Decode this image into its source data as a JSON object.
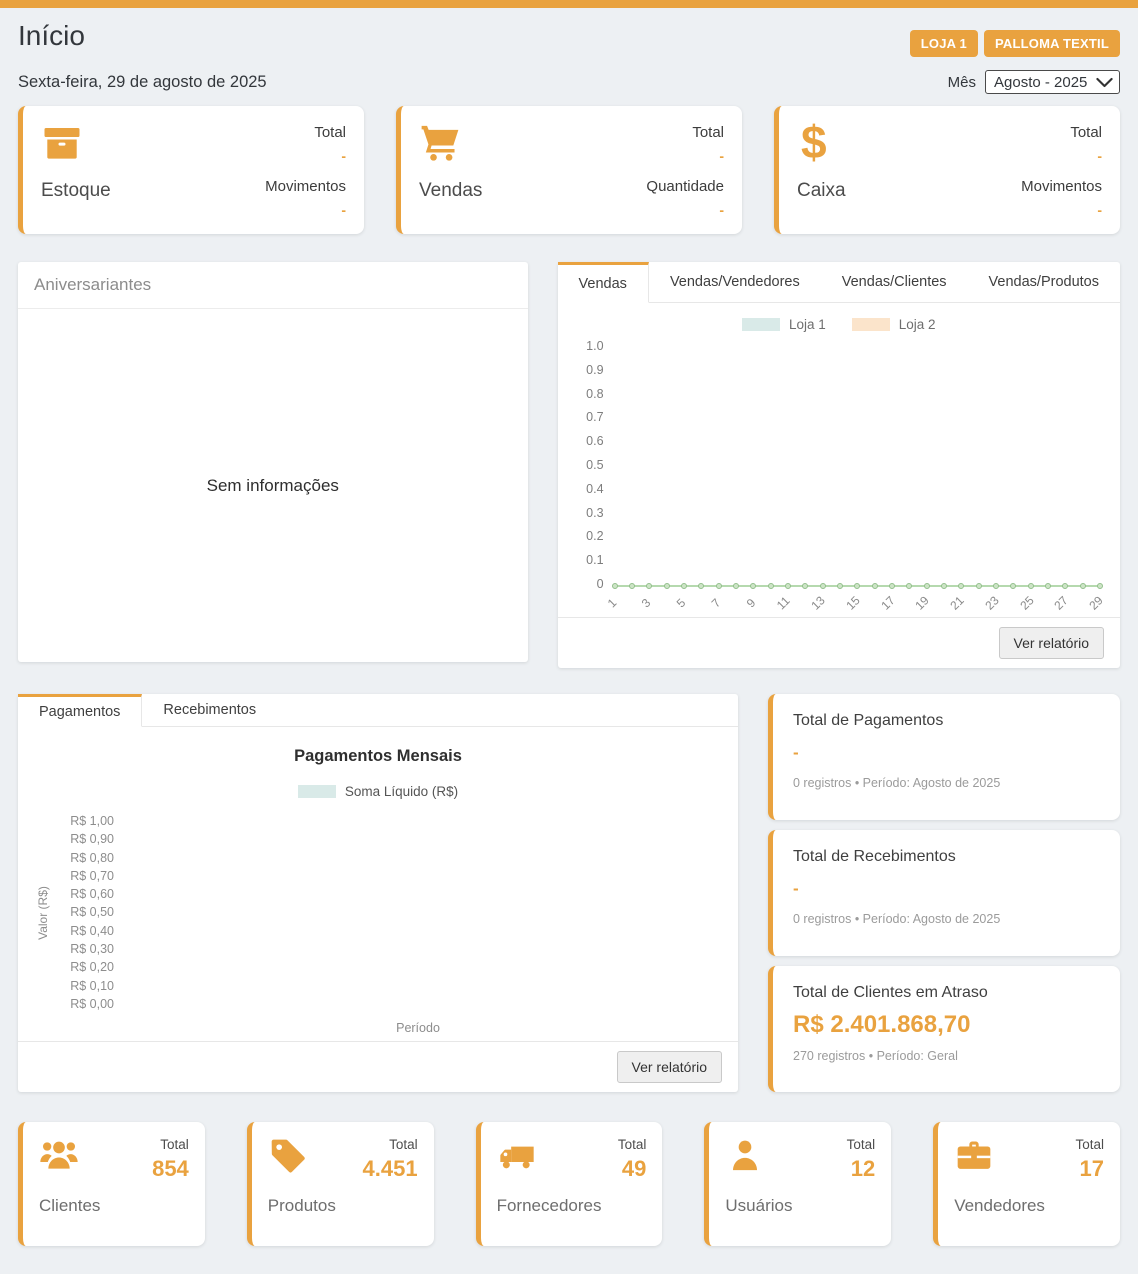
{
  "accent": "#e9a23f",
  "header": {
    "title": "Início",
    "date": "Sexta-feira, 29 de agosto de 2025",
    "store_button": "LOJA 1",
    "company_button": "PALLOMA TEXTIL",
    "month_label": "Mês",
    "month_value": "Agosto - 2025"
  },
  "summary_cards": [
    {
      "label": "Estoque",
      "icon": "box-icon",
      "row1_label": "Total",
      "row1_value": "-",
      "row2_label": "Movimentos",
      "row2_value": "-"
    },
    {
      "label": "Vendas",
      "icon": "cart-icon",
      "row1_label": "Total",
      "row1_value": "-",
      "row2_label": "Quantidade",
      "row2_value": "-"
    },
    {
      "label": "Caixa",
      "icon": "dollar-icon",
      "row1_label": "Total",
      "row1_value": "-",
      "row2_label": "Movimentos",
      "row2_value": "-"
    }
  ],
  "birthdays_panel": {
    "title": "Aniversariantes",
    "empty_message": "Sem informações"
  },
  "sales_panel": {
    "tabs": [
      "Vendas",
      "Vendas/Vendedores",
      "Vendas/Clientes",
      "Vendas/Produtos"
    ],
    "active_tab": "Vendas",
    "report_button": "Ver relatório"
  },
  "payments_panel": {
    "tabs": [
      "Pagamentos",
      "Recebimentos"
    ],
    "active_tab": "Pagamentos",
    "report_button": "Ver relatório"
  },
  "totals_cards": [
    {
      "title": "Total de Pagamentos",
      "value": "-",
      "meta": "0 registros • Período: Agosto de 2025"
    },
    {
      "title": "Total de Recebimentos",
      "value": "-",
      "meta": "0 registros • Período: Agosto de 2025"
    },
    {
      "title": "Total de Clientes em Atraso",
      "value": "R$ 2.401.868,70",
      "meta": "270 registros • Período: Geral"
    }
  ],
  "entity_cards": [
    {
      "label": "Clientes",
      "icon": "people-icon",
      "total_label": "Total",
      "value": "854"
    },
    {
      "label": "Produtos",
      "icon": "tag-icon",
      "total_label": "Total",
      "value": "4.451"
    },
    {
      "label": "Fornecedores",
      "icon": "truck-icon",
      "total_label": "Total",
      "value": "49"
    },
    {
      "label": "Usuários",
      "icon": "person-icon",
      "total_label": "Total",
      "value": "12"
    },
    {
      "label": "Vendedores",
      "icon": "briefcase-icon",
      "total_label": "Total",
      "value": "17"
    }
  ],
  "chart_data": [
    {
      "type": "line",
      "title": "",
      "categories": [
        1,
        2,
        3,
        4,
        5,
        6,
        7,
        8,
        9,
        10,
        11,
        12,
        13,
        14,
        15,
        16,
        17,
        18,
        19,
        20,
        21,
        22,
        23,
        24,
        25,
        26,
        27,
        28,
        29
      ],
      "series": [
        {
          "name": "Loja 1",
          "color": "#d9eae8",
          "values": [
            0,
            0,
            0,
            0,
            0,
            0,
            0,
            0,
            0,
            0,
            0,
            0,
            0,
            0,
            0,
            0,
            0,
            0,
            0,
            0,
            0,
            0,
            0,
            0,
            0,
            0,
            0,
            0,
            0
          ]
        },
        {
          "name": "Loja 2",
          "color": "#fbe4cb",
          "values": [
            0,
            0,
            0,
            0,
            0,
            0,
            0,
            0,
            0,
            0,
            0,
            0,
            0,
            0,
            0,
            0,
            0,
            0,
            0,
            0,
            0,
            0,
            0,
            0,
            0,
            0,
            0,
            0,
            0
          ]
        }
      ],
      "y_ticks": [
        "1.0",
        "0.9",
        "0.8",
        "0.7",
        "0.6",
        "0.5",
        "0.4",
        "0.3",
        "0.2",
        "0.1",
        "0"
      ],
      "x_tick_labels": [
        "1",
        "3",
        "5",
        "7",
        "9",
        "11",
        "13",
        "15",
        "17",
        "19",
        "21",
        "23",
        "25",
        "27",
        "29"
      ],
      "ylim": [
        0,
        1
      ],
      "grid": false,
      "legend_position": "top",
      "line_color": "#b5d9ae"
    },
    {
      "type": "line",
      "title": "Pagamentos Mensais",
      "categories": [],
      "series": [
        {
          "name": "Soma Líquido (R$)",
          "color": "#d9eae8",
          "values": []
        }
      ],
      "y_ticks": [
        "R$ 1,00",
        "R$ 0,90",
        "R$ 0,80",
        "R$ 0,70",
        "R$ 0,60",
        "R$ 0,50",
        "R$ 0,40",
        "R$ 0,30",
        "R$ 0,20",
        "R$ 0,10",
        "R$ 0,00"
      ],
      "xlabel": "Período",
      "ylabel": "Valor (R$)",
      "ylim": [
        0,
        1
      ],
      "grid": false,
      "legend_position": "top"
    }
  ]
}
